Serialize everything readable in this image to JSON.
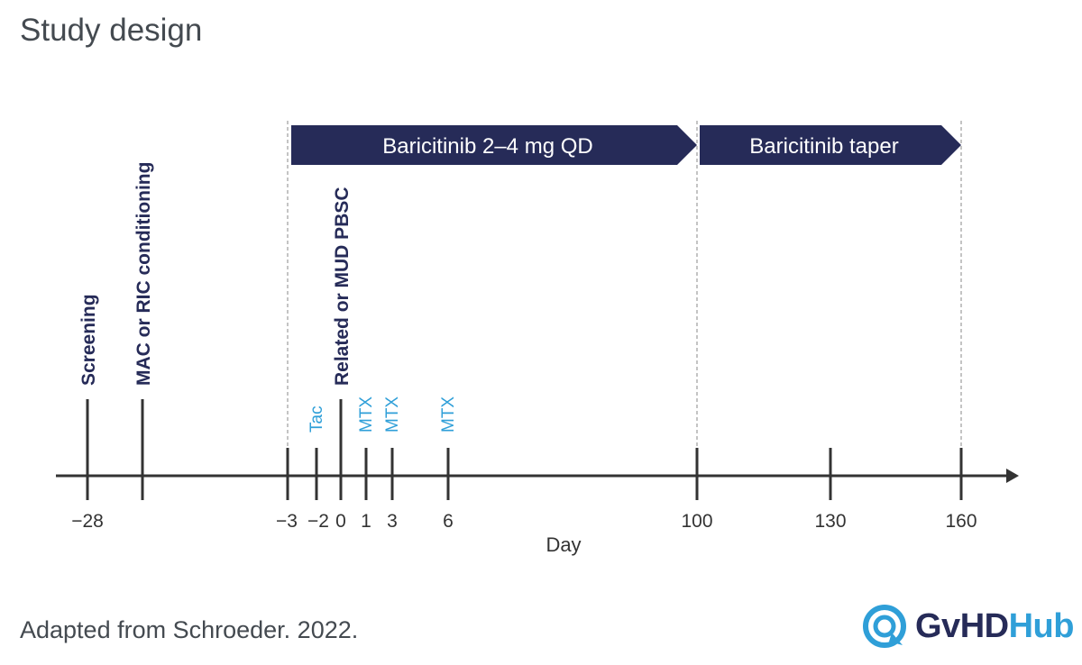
{
  "title": "Study design",
  "source": "Adapted from Schroeder. 2022.",
  "logo": {
    "part1": "GvHD",
    "part2": "Hub",
    "icon": "speech-bubble-icon"
  },
  "colors": {
    "navy": "#262b58",
    "accent": "#2f9fd8",
    "text": "#444a50",
    "axis": "#333333"
  },
  "timeline": {
    "axis_label": "Day",
    "ticks": [
      {
        "label": "−28",
        "tall": true
      },
      {
        "label": "",
        "tall": true
      },
      {
        "label": "−3",
        "tall": false
      },
      {
        "label": "−2",
        "tall": false
      },
      {
        "label": "0",
        "tall": true
      },
      {
        "label": "1",
        "tall": false
      },
      {
        "label": "3",
        "tall": false
      },
      {
        "label": "6",
        "tall": false
      },
      {
        "label": "100",
        "tall": false
      },
      {
        "label": "130",
        "tall": false
      },
      {
        "label": "160",
        "tall": false
      }
    ],
    "events": [
      {
        "text": "Screening",
        "tick": 0,
        "style": "bold"
      },
      {
        "text": "MAC or RIC conditioning",
        "tick": 1,
        "style": "bold"
      },
      {
        "text": "Related or MUD PBSC",
        "tick": 4,
        "style": "bold"
      },
      {
        "text": "Tac",
        "tick": 3,
        "style": "drug"
      },
      {
        "text": "MTX",
        "tick": 5,
        "style": "drug"
      },
      {
        "text": "MTX",
        "tick": 6,
        "style": "drug"
      },
      {
        "text": "MTX",
        "tick": 7,
        "style": "drug"
      }
    ],
    "phases": [
      {
        "label": "Baricitinib 2–4 mg QD",
        "from_tick": 2,
        "to_tick": 8
      },
      {
        "label": "Baricitinib taper",
        "from_tick": 8,
        "to_tick": 10
      }
    ]
  }
}
